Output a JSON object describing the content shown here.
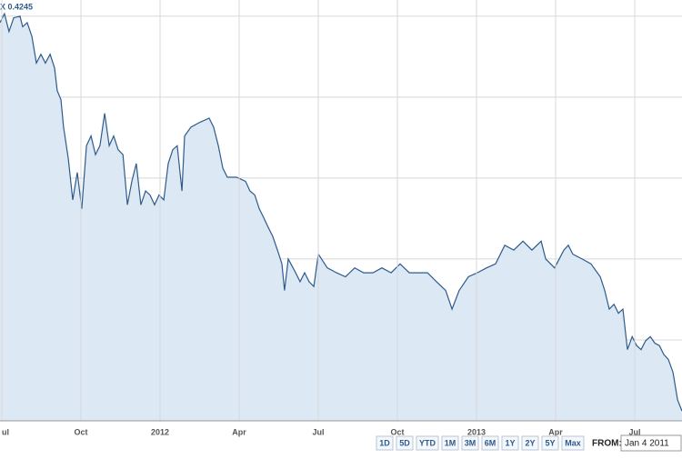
{
  "chart_data": {
    "type": "area",
    "header_label": "X 0.4245",
    "x": [
      0,
      0.17,
      0.34,
      0.52,
      0.76,
      0.86,
      1.03,
      1.21,
      1.38,
      1.55,
      1.72,
      1.9,
      2.07,
      2.17,
      2.31,
      2.41,
      2.59,
      2.76,
      2.93,
      3.1,
      3.28,
      3.45,
      3.62,
      3.79,
      3.97,
      4.14,
      4.31,
      4.48,
      4.66,
      4.83,
      5,
      5.17,
      5.34,
      5.52,
      5.69,
      5.86,
      6.03,
      6.21,
      6.38,
      6.55,
      6.72,
      6.9,
      7,
      7.24,
      7.59,
      7.93,
      8.1,
      8.28,
      8.45,
      8.62,
      8.97,
      9.31,
      9.48,
      9.66,
      9.83,
      10,
      10.17,
      10.34,
      10.52,
      10.69,
      10.79,
      10.93,
      11.03,
      11.21,
      11.38,
      11.55,
      11.72,
      11.9,
      12.07,
      12.41,
      12.76,
      13.1,
      13.45,
      13.79,
      14.14,
      14.48,
      14.83,
      15.17,
      15.52,
      15.86,
      16.21,
      16.55,
      16.9,
      17.14,
      17.41,
      17.76,
      18.1,
      18.45,
      18.79,
      19.14,
      19.48,
      19.83,
      20.17,
      20.52,
      20.69,
      21.03,
      21.38,
      21.55,
      21.72,
      22.07,
      22.41,
      22.76,
      22.93,
      23.1,
      23.28,
      23.45,
      23.62,
      23.79,
      23.97,
      24.14,
      24.31,
      24.48,
      24.66,
      24.83,
      25,
      25.17,
      25.34,
      25.52,
      25.69,
      25.86
    ],
    "values": [
      4.92,
      5.03,
      4.81,
      4.98,
      5,
      4.87,
      4.92,
      4.75,
      4.42,
      4.53,
      4.42,
      4.53,
      4.36,
      4.08,
      3.97,
      3.63,
      3.24,
      2.73,
      3.07,
      2.62,
      3.4,
      3.52,
      3.29,
      3.4,
      3.8,
      3.4,
      3.52,
      3.35,
      3.29,
      2.67,
      2.96,
      3.18,
      2.67,
      2.84,
      2.79,
      2.67,
      2.79,
      2.73,
      3.18,
      3.35,
      3.4,
      2.84,
      3.52,
      3.63,
      3.69,
      3.74,
      3.63,
      3.4,
      3.12,
      3.01,
      3.01,
      2.96,
      2.84,
      2.79,
      2.62,
      2.51,
      2.39,
      2.28,
      2.11,
      1.94,
      1.61,
      2,
      1.94,
      1.83,
      1.72,
      1.83,
      1.72,
      1.66,
      2.06,
      1.89,
      1.83,
      1.78,
      1.89,
      1.83,
      1.83,
      1.89,
      1.83,
      1.94,
      1.83,
      1.83,
      1.83,
      1.72,
      1.61,
      1.38,
      1.61,
      1.78,
      1.83,
      1.89,
      1.94,
      2.17,
      2.11,
      2.22,
      2.11,
      2.22,
      2,
      1.89,
      2.11,
      2.17,
      2.06,
      2,
      1.94,
      1.78,
      1.61,
      1.38,
      1.44,
      1.33,
      1.38,
      0.88,
      1.04,
      0.93,
      0.88,
      0.99,
      1.04,
      0.96,
      0.93,
      0.82,
      0.76,
      0.6,
      0.26,
      0.12
    ],
    "color": "#2d5b8c",
    "fill": "#dce8f4",
    "xlim": [
      0,
      25.86
    ],
    "ylim": [
      0,
      5.2
    ],
    "xticks": [
      {
        "value": 0,
        "label": "ul"
      },
      {
        "value": 3,
        "label": "Oct"
      },
      {
        "value": 6,
        "label": "2012"
      },
      {
        "value": 9,
        "label": "Apr"
      },
      {
        "value": 12,
        "label": "Jul"
      },
      {
        "value": 15,
        "label": "Oct"
      },
      {
        "value": 18,
        "label": "2013"
      },
      {
        "value": 21,
        "label": "Apr"
      },
      {
        "value": 24,
        "label": "Jul"
      }
    ],
    "ygrid": [
      1,
      2,
      3,
      4,
      5
    ],
    "grid": true
  },
  "controls": {
    "ranges": [
      "1D",
      "5D",
      "YTD",
      "1M",
      "3M",
      "6M",
      "1Y",
      "2Y",
      "5Y",
      "Max"
    ],
    "from_label": "FROM:",
    "from_value": "Jan 4 2011"
  }
}
